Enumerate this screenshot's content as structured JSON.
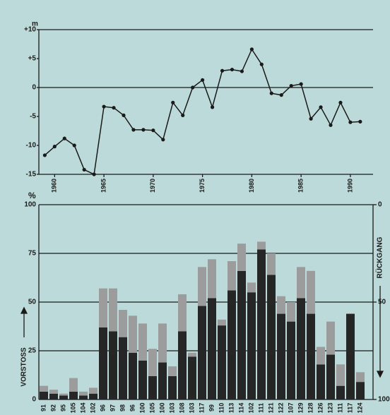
{
  "chart_data": [
    {
      "type": "line",
      "y_label": "m",
      "x": [
        1959,
        1960,
        1961,
        1962,
        1963,
        1964,
        1965,
        1966,
        1967,
        1968,
        1969,
        1970,
        1971,
        1972,
        1973,
        1974,
        1975,
        1976,
        1977,
        1978,
        1979,
        1980,
        1981,
        1982,
        1983,
        1984,
        1985,
        1986,
        1987,
        1988,
        1989,
        1990,
        1991
      ],
      "values": [
        -11.7,
        -10.2,
        -8.8,
        -10,
        -14.2,
        -15,
        -3.3,
        -3.5,
        -4.8,
        -7.3,
        -7.3,
        -7.4,
        -9,
        -2.6,
        -4.8,
        0,
        1.3,
        -3.4,
        2.9,
        3.1,
        2.8,
        6.6,
        4,
        -1,
        -1.3,
        0.3,
        0.6,
        -5.4,
        -3.4,
        -6.5,
        -2.6,
        -6,
        -5.9
      ],
      "color": "#1a1a1a",
      "xlim": [
        1958.4,
        1992.3
      ],
      "xticks": [
        1960,
        1965,
        1970,
        1975,
        1980,
        1985,
        1990
      ],
      "ylim": [
        -15,
        10
      ],
      "yticks": [
        {
          "value": 10,
          "label": "+10"
        },
        {
          "value": 5,
          "label": "+5"
        },
        0,
        -5,
        -10,
        -15
      ]
    },
    {
      "type": "bar",
      "y_label": "%",
      "y_label_left": "VORSTOSS",
      "y2_label": "RÜCKGANG",
      "categories": [
        "91",
        "92",
        "95",
        "105",
        "104",
        "102",
        "96",
        "97",
        "98",
        "96",
        "100",
        "105",
        "100",
        "103",
        "108",
        "103",
        "117",
        "99",
        "110",
        "113",
        "114",
        "102",
        "111",
        "121",
        "122",
        "107",
        "129",
        "128",
        "126",
        "123",
        "111",
        "117",
        "124"
      ],
      "series": [
        {
          "color": "#262626",
          "values": [
            4,
            3,
            2,
            4,
            2,
            3,
            37,
            35,
            32,
            24,
            20,
            12,
            19,
            12,
            35,
            22,
            48,
            52,
            38,
            56,
            66,
            55,
            77,
            64,
            44,
            40,
            52,
            44,
            18,
            23,
            7,
            44,
            9
          ]
        },
        {
          "color": "#9c9c9c",
          "values": [
            3,
            2,
            1,
            7,
            2,
            3,
            20,
            22,
            14,
            19,
            19,
            14,
            20,
            5,
            19,
            2,
            20,
            20,
            3,
            15,
            14,
            5,
            4,
            11,
            9,
            10,
            16,
            22,
            9,
            17,
            11,
            0,
            5
          ]
        }
      ],
      "ylim": [
        0,
        100
      ],
      "yticks": [
        0,
        25,
        50,
        75,
        100
      ],
      "y2lim": [
        100,
        0
      ],
      "y2ticks": [
        0,
        50,
        100
      ]
    }
  ]
}
